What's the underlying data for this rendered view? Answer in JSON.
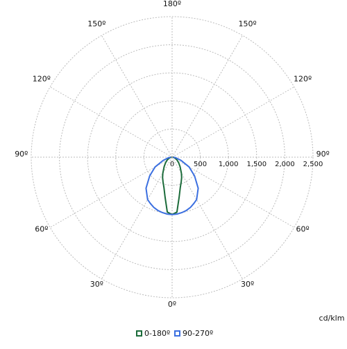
{
  "chart_data": {
    "type": "polar",
    "x": [
      0,
      5,
      10,
      15,
      20,
      25,
      30,
      40,
      50,
      60,
      70,
      80,
      90
    ],
    "series": [
      {
        "name": "0-180º",
        "color": "#1b6b3a",
        "values": [
          1020,
          980,
          720,
          560,
          470,
          400,
          330,
          220,
          150,
          100,
          60,
          30,
          10
        ]
      },
      {
        "name": "90-270º",
        "color": "#3b6fe0",
        "values": [
          1020,
          1015,
          1000,
          980,
          950,
          910,
          870,
          720,
          520,
          350,
          170,
          70,
          20
        ]
      }
    ],
    "ylim": [
      0,
      2500
    ],
    "yticks": [
      0,
      500,
      {
        "value": 1000,
        "label": "1,000"
      },
      {
        "value": 1500,
        "label": "1,500"
      },
      {
        "value": 2000,
        "label": "2,000"
      },
      {
        "value": 2500,
        "label": "2,500"
      }
    ],
    "angle_ticks": [
      {
        "value": 0,
        "label": "0º"
      },
      {
        "value": 30,
        "label": "30º"
      },
      {
        "value": 60,
        "label": "60º"
      },
      {
        "value": 90,
        "label": "90º"
      },
      {
        "value": 120,
        "label": "120º"
      },
      {
        "value": 150,
        "label": "150º"
      },
      {
        "value": 180,
        "label": "180º"
      },
      {
        "value": 210,
        "label": "150º"
      },
      {
        "value": 240,
        "label": "120º"
      },
      {
        "value": 270,
        "label": "90º"
      },
      {
        "value": 300,
        "label": "60º"
      },
      {
        "value": 330,
        "label": "30º"
      }
    ],
    "unit": "cd/klm",
    "grid": true
  }
}
